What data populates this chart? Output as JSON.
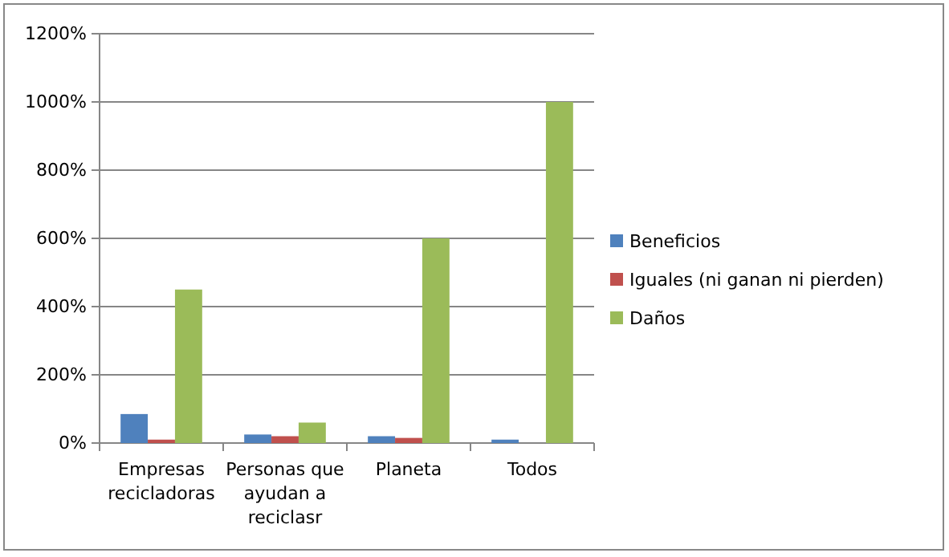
{
  "chart_data": {
    "type": "bar",
    "categories": [
      "Empresas recicladoras",
      "Personas que ayudan a reciclasr",
      "Planeta",
      "Todos"
    ],
    "series": [
      {
        "name": "Beneficios",
        "color": "#4f81bd",
        "values": [
          85,
          25,
          20,
          10
        ]
      },
      {
        "name": "Iguales (ni ganan ni pierden)",
        "color": "#c0504d",
        "values": [
          10,
          20,
          15,
          0
        ]
      },
      {
        "name": "Daños",
        "color": "#9bbb59",
        "values": [
          450,
          60,
          600,
          1000
        ]
      }
    ],
    "ylim": [
      0,
      1200
    ],
    "yticks": [
      {
        "value": 0,
        "label": "0%"
      },
      {
        "value": 200,
        "label": "200%"
      },
      {
        "value": 400,
        "label": "400%"
      },
      {
        "value": 600,
        "label": "600%"
      },
      {
        "value": 800,
        "label": "800%"
      },
      {
        "value": 1000,
        "label": "1000%"
      },
      {
        "value": 1200,
        "label": "1200%"
      }
    ],
    "grid": "y",
    "legend": "right"
  }
}
